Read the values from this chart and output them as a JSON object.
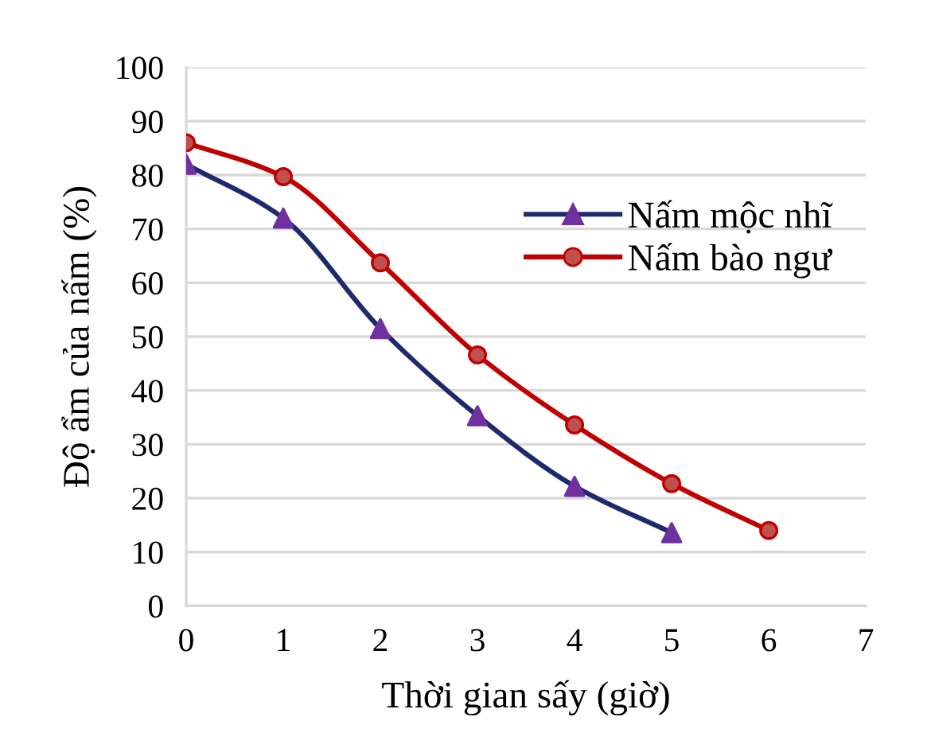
{
  "chart_data": {
    "type": "line",
    "xlabel": "Thời gian sấy (giờ)",
    "ylabel": "Độ ẩm của nấm (%)",
    "series": [
      {
        "name": "Nấm mộc nhĩ",
        "color": "#1f2a6e",
        "marker": "triangle",
        "colors": [
          "#7030a0",
          "#7030a0",
          "#7030a0",
          "#7030a0",
          "#7030a0",
          "#7030a0"
        ],
        "x": [
          0,
          1,
          2,
          3,
          4,
          5
        ],
        "values": [
          82,
          72,
          51.5,
          35.3,
          22.2,
          13.6
        ]
      },
      {
        "name": "Nấm bào ngư",
        "color": "#c00000",
        "marker": "circle",
        "colors": [
          "#c0504d",
          "#c0504d",
          "#c0504d",
          "#c0504d",
          "#c0504d",
          "#c0504d",
          "#c0504d"
        ],
        "x": [
          0,
          1,
          2,
          3,
          4,
          5,
          6
        ],
        "values": [
          86,
          79.7,
          63.7,
          46.6,
          33.6,
          22.7,
          14
        ]
      }
    ],
    "xlim": [
      0,
      7
    ],
    "xticks": [
      0,
      1,
      2,
      3,
      4,
      5,
      6,
      7
    ],
    "ylim": [
      0,
      100
    ],
    "yticks": [
      0,
      10,
      20,
      30,
      40,
      50,
      60,
      70,
      80,
      90,
      100
    ],
    "grid": "y",
    "legend": "right",
    "line_style": "solid"
  }
}
